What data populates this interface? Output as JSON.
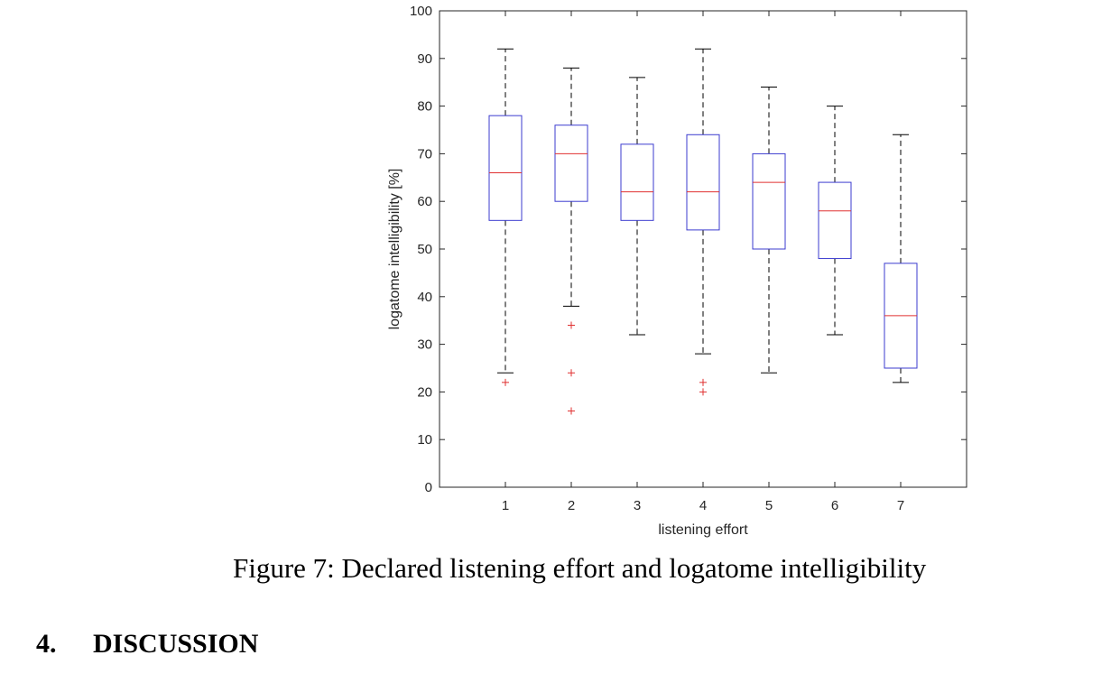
{
  "chart_data": {
    "type": "boxplot",
    "xlabel": "listening effort",
    "ylabel": "logatome intelligibility [%]",
    "ylim": [
      0,
      100
    ],
    "yticks": [
      0,
      10,
      20,
      30,
      40,
      50,
      60,
      70,
      80,
      90,
      100
    ],
    "categories": [
      "1",
      "2",
      "3",
      "4",
      "5",
      "6",
      "7"
    ],
    "boxes": [
      {
        "category": "1",
        "whisker_low": 24,
        "q1": 56,
        "median": 66,
        "q3": 78,
        "whisker_high": 92,
        "outliers": [
          22
        ]
      },
      {
        "category": "2",
        "whisker_low": 38,
        "q1": 60,
        "median": 70,
        "q3": 76,
        "whisker_high": 88,
        "outliers": [
          34,
          24,
          16
        ]
      },
      {
        "category": "3",
        "whisker_low": 32,
        "q1": 56,
        "median": 62,
        "q3": 72,
        "whisker_high": 86,
        "outliers": []
      },
      {
        "category": "4",
        "whisker_low": 28,
        "q1": 54,
        "median": 62,
        "q3": 74,
        "whisker_high": 92,
        "outliers": [
          22,
          20
        ]
      },
      {
        "category": "5",
        "whisker_low": 24,
        "q1": 50,
        "median": 64,
        "q3": 70,
        "whisker_high": 84,
        "outliers": []
      },
      {
        "category": "6",
        "whisker_low": 32,
        "q1": 48,
        "median": 58,
        "q3": 64,
        "whisker_high": 80,
        "outliers": []
      },
      {
        "category": "7",
        "whisker_low": 22,
        "q1": 25,
        "median": 36,
        "q3": 47,
        "whisker_high": 74,
        "outliers": []
      }
    ],
    "colors": {
      "box": "#3b3bcf",
      "median": "#e03030",
      "whisker": "#000000",
      "outlier": "#e03030",
      "axis": "#262626"
    }
  },
  "caption": "Figure 7: Declared listening effort and logatome intelligibility",
  "section": {
    "number": "4.",
    "title": "DISCUSSION"
  }
}
